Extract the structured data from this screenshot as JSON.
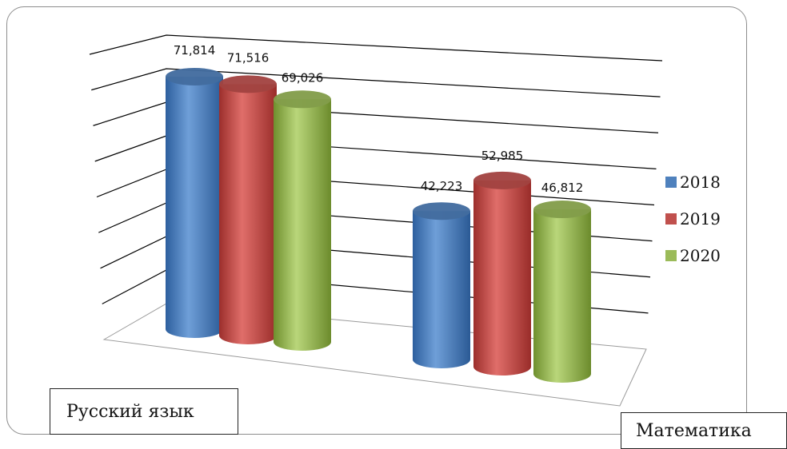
{
  "chart_data": {
    "type": "bar",
    "style": "3d-cylinder",
    "categories": [
      "Русский язык",
      "Математика"
    ],
    "series": [
      {
        "name": "2018",
        "values": [
          71.814,
          42.223
        ],
        "labels": [
          "71,814",
          "42,223"
        ],
        "color": "#4f81bd"
      },
      {
        "name": "2019",
        "values": [
          71.516,
          52.985
        ],
        "labels": [
          "71,516",
          "52,985"
        ],
        "color": "#c0504d"
      },
      {
        "name": "2020",
        "values": [
          69.026,
          46.812
        ],
        "labels": [
          "69,026",
          "46,812"
        ],
        "color": "#9bbb59"
      }
    ],
    "ylim": [
      0,
      80
    ],
    "grid": true,
    "legend": "right"
  }
}
